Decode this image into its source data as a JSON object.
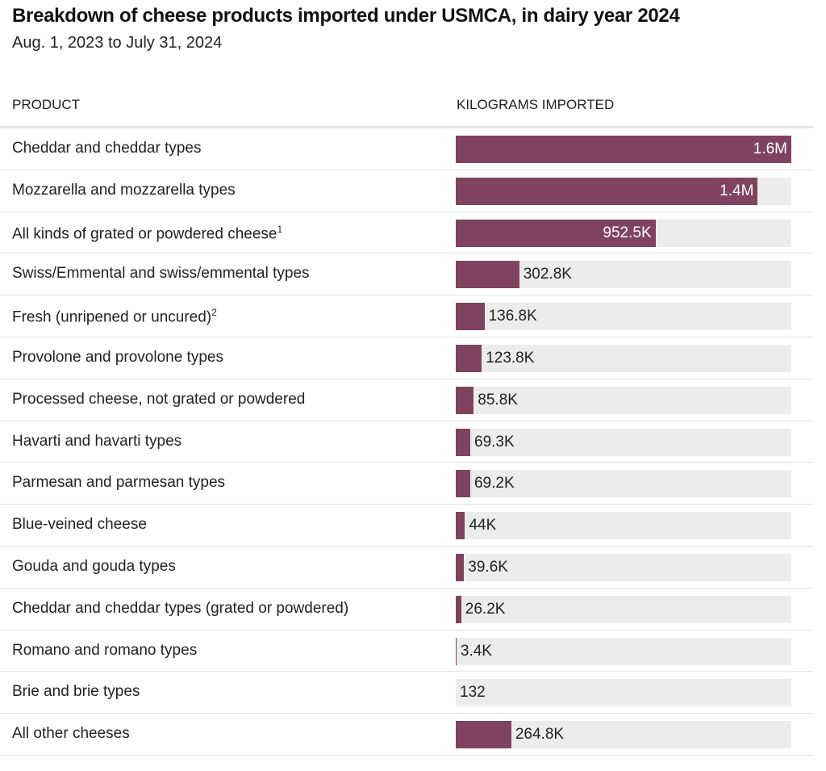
{
  "chart_data": {
    "type": "bar",
    "orientation": "horizontal",
    "title": "Breakdown of cheese products imported under USMCA, in dairy year 2024",
    "subtitle": "Aug. 1, 2023 to July 31, 2024",
    "column_headers": {
      "category": "PRODUCT",
      "value": "KILOGRAMS IMPORTED"
    },
    "bar_color": "#7f4360",
    "track_color": "#ececec",
    "xlim": [
      0,
      1600000
    ],
    "rows": [
      {
        "category": "Cheddar and cheddar types",
        "footnote": "",
        "value": 1600000,
        "label": "1.6M"
      },
      {
        "category": "Mozzarella and mozzarella types",
        "footnote": "",
        "value": 1440000,
        "label": "1.4M"
      },
      {
        "category": "All kinds of grated or powdered cheese",
        "footnote": "1",
        "value": 952500,
        "label": "952.5K"
      },
      {
        "category": "Swiss/Emmental and swiss/emmental types",
        "footnote": "",
        "value": 302800,
        "label": "302.8K"
      },
      {
        "category": "Fresh (unripened or uncured)",
        "footnote": "2",
        "value": 136800,
        "label": "136.8K"
      },
      {
        "category": "Provolone and provolone types",
        "footnote": "",
        "value": 123800,
        "label": "123.8K"
      },
      {
        "category": "Processed cheese, not grated or powdered",
        "footnote": "",
        "value": 85800,
        "label": "85.8K"
      },
      {
        "category": "Havarti and havarti types",
        "footnote": "",
        "value": 69300,
        "label": "69.3K"
      },
      {
        "category": "Parmesan and parmesan types",
        "footnote": "",
        "value": 69200,
        "label": "69.2K"
      },
      {
        "category": "Blue-veined cheese",
        "footnote": "",
        "value": 44000,
        "label": "44K"
      },
      {
        "category": "Gouda and gouda types",
        "footnote": "",
        "value": 39600,
        "label": "39.6K"
      },
      {
        "category": "Cheddar and cheddar types (grated or powdered)",
        "footnote": "",
        "value": 26200,
        "label": "26.2K"
      },
      {
        "category": "Romano and romano types",
        "footnote": "",
        "value": 3400,
        "label": "3.4K"
      },
      {
        "category": "Brie and brie types",
        "footnote": "",
        "value": 132,
        "label": "132"
      },
      {
        "category": "All other cheeses",
        "footnote": "",
        "value": 264800,
        "label": "264.8K"
      }
    ]
  }
}
